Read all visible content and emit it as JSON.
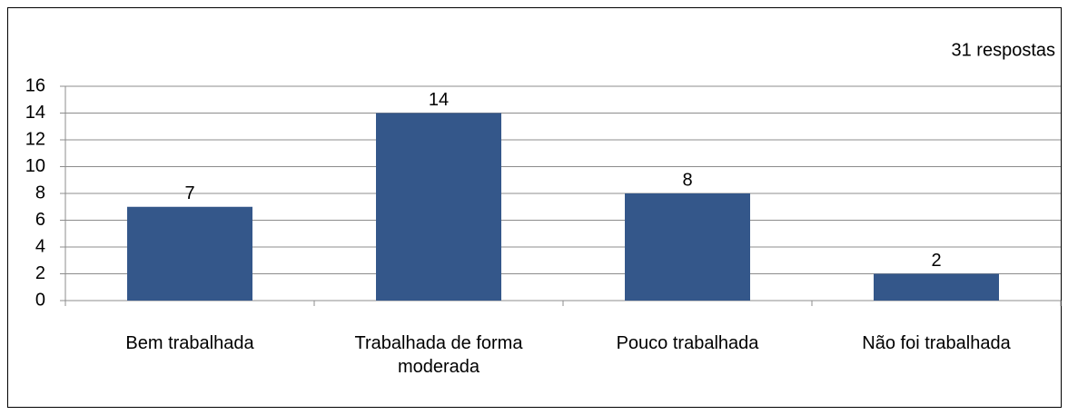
{
  "chart_data": {
    "type": "bar",
    "annotation": "31 respostas",
    "categories": [
      "Bem trabalhada",
      "Trabalhada de forma moderada",
      "Pouco trabalhada",
      "Não foi trabalhada"
    ],
    "values": [
      7,
      14,
      8,
      2
    ],
    "color": "#34578a",
    "ylim": [
      0,
      16
    ],
    "yticks": [
      0,
      2,
      4,
      6,
      8,
      10,
      12,
      14,
      16
    ],
    "grid": true
  }
}
